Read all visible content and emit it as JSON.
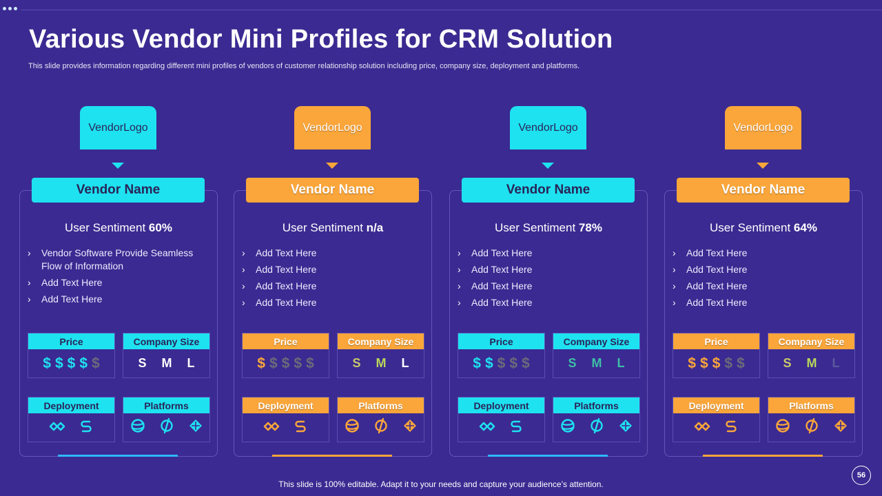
{
  "slide": {
    "title": "Various Vendor Mini Profiles for CRM Solution",
    "subtitle": "This slide provides information regarding different mini profiles of vendors of customer  relationship solution including price, company size, deployment  and platforms.",
    "footer": "This slide is 100% editable. Adapt it to your needs and capture your audience’s attention.",
    "page_number": "56"
  },
  "colors": {
    "background": "#3b2a91",
    "cyan": "#1ee2f0",
    "orange": "#fba63a",
    "dim": "#6b6b7a"
  },
  "labels": {
    "price": "Price",
    "company_size": "Company Size",
    "deployment": "Deployment",
    "platforms": "Platforms",
    "sentiment_prefix": "User Sentiment",
    "size_s": "S",
    "size_m": "M",
    "size_l": "L"
  },
  "vendors": [
    {
      "logo": [
        "Vendor",
        "Logo"
      ],
      "name": "Vendor Name",
      "sentiment": "60%",
      "theme": "cyan",
      "bullets": [
        "Vendor Software Provide Seamless Flow of Information",
        "Add Text Here",
        "Add Text Here"
      ],
      "price_level": 4,
      "size_active": [
        "S",
        "M",
        "L"
      ],
      "deployment_icons": [
        "cloud-deploy-icon",
        "sync-icon"
      ],
      "platform_icons": [
        "globe-icon",
        "mobile-icon",
        "windows-icon"
      ]
    },
    {
      "logo": [
        "Vendor",
        "Logo"
      ],
      "name": "Vendor Name",
      "sentiment": "n/a",
      "theme": "orange",
      "bullets": [
        "Add Text Here",
        "Add Text Here",
        "Add Text Here",
        "Add Text Here"
      ],
      "price_level": 1,
      "size_active": [
        "S",
        "M",
        "L"
      ],
      "deployment_icons": [
        "cloud-deploy-icon",
        "sync-icon"
      ],
      "platform_icons": [
        "globe-icon",
        "mobile-icon",
        "windows-icon"
      ]
    },
    {
      "logo": [
        "Vendor",
        "Logo"
      ],
      "name": "Vendor Name",
      "sentiment": "78%",
      "theme": "cyan",
      "bullets": [
        "Add Text Here",
        "Add Text Here",
        "Add Text Here",
        "Add Text Here"
      ],
      "price_level": 2,
      "size_active": [
        "S",
        "M",
        "L"
      ],
      "deployment_icons": [
        "cloud-deploy-icon",
        "sync-icon"
      ],
      "platform_icons": [
        "globe-icon",
        "mobile-icon",
        "windows-icon"
      ]
    },
    {
      "logo": [
        "Vendor",
        "Logo"
      ],
      "name": "Vendor Name",
      "sentiment": "64%",
      "theme": "orange",
      "bullets": [
        "Add Text Here",
        "Add Text Here",
        "Add Text Here",
        "Add Text Here"
      ],
      "price_level": 3,
      "size_active": [
        "S",
        "M"
      ],
      "deployment_icons": [
        "cloud-deploy-icon",
        "sync-icon"
      ],
      "platform_icons": [
        "globe-icon",
        "mobile-icon",
        "windows-icon"
      ]
    }
  ]
}
